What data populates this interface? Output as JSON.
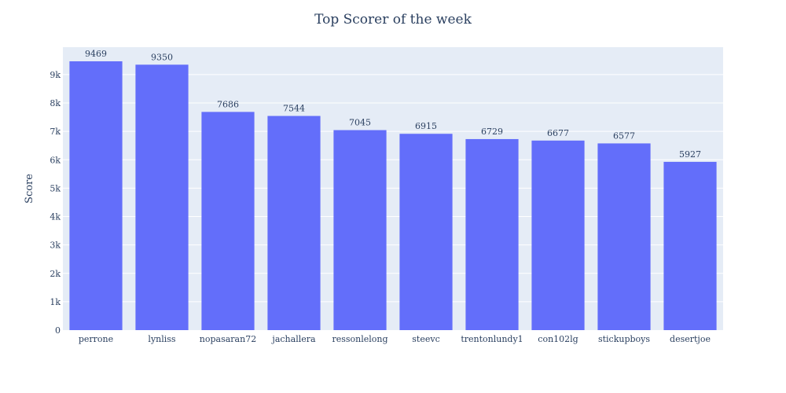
{
  "chart_data": {
    "type": "bar",
    "title": "Top Scorer of the week",
    "xlabel": "",
    "ylabel": "Score",
    "categories": [
      "perrone",
      "lynliss",
      "nopasaran72",
      "jachallera",
      "ressonlelong",
      "steevc",
      "trentonlundy1",
      "con102lg",
      "stickupboys",
      "desertjoe"
    ],
    "values": [
      9469,
      9350,
      7686,
      7544,
      7045,
      6915,
      6729,
      6677,
      6577,
      5927
    ],
    "ylim": [
      0,
      9967
    ],
    "yticks": [
      0,
      1000,
      2000,
      3000,
      4000,
      5000,
      6000,
      7000,
      8000,
      9000
    ],
    "ytick_labels": [
      "0",
      "1k",
      "2k",
      "3k",
      "4k",
      "5k",
      "6k",
      "7k",
      "8k",
      "9k"
    ],
    "grid": true,
    "colors": {
      "bar": "#636efa",
      "plot_bg": "#e5ecf6",
      "grid": "#ffffff",
      "text": "#2a3f5f"
    }
  }
}
